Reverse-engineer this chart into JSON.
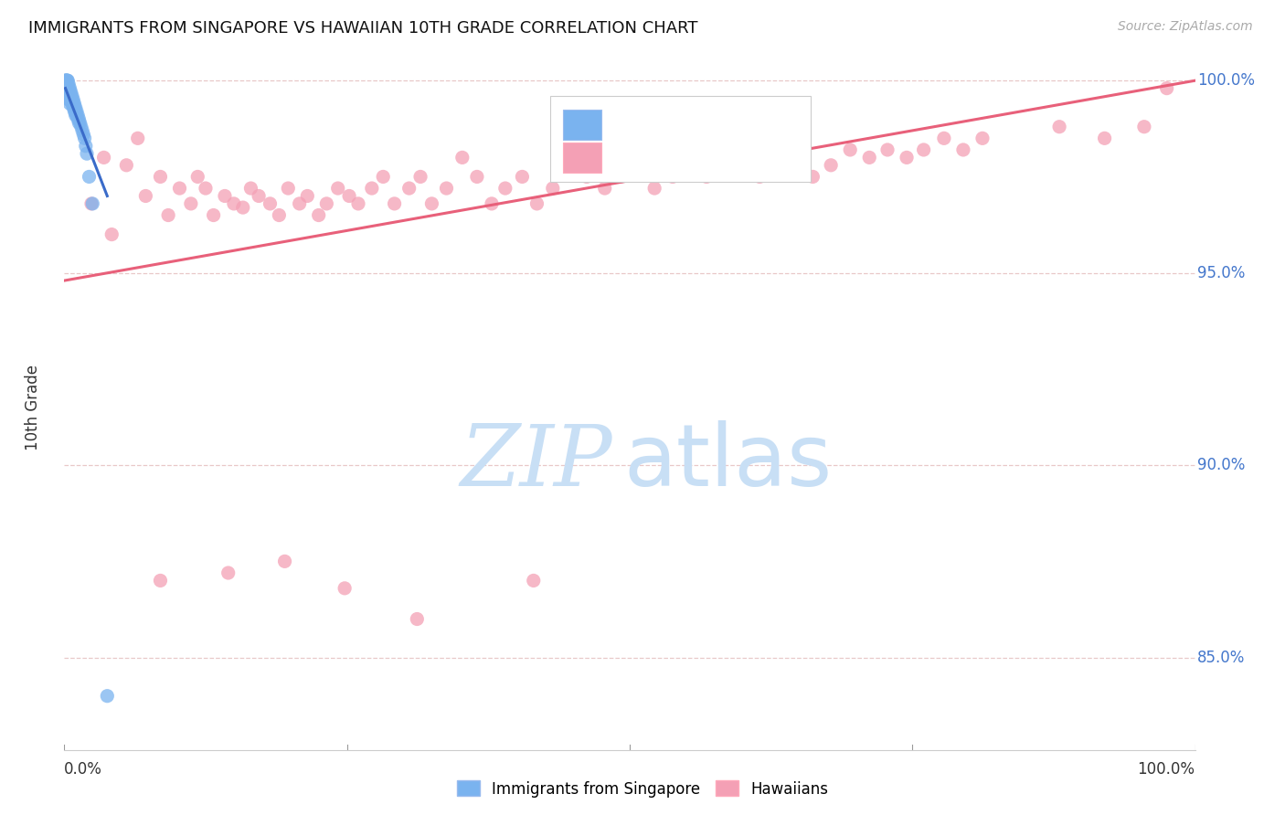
{
  "title": "IMMIGRANTS FROM SINGAPORE VS HAWAIIAN 10TH GRADE CORRELATION CHART",
  "source": "Source: ZipAtlas.com",
  "ylabel": "10th Grade",
  "blue_color": "#7ab3ef",
  "pink_color": "#f4a0b5",
  "blue_line_color": "#3a6bc9",
  "pink_line_color": "#e8607a",
  "grid_color": "#e8c8c8",
  "background_color": "#ffffff",
  "legend_text_color": "#2255aa",
  "ytick_color": "#4477cc",
  "xlim": [
    0.0,
    1.0
  ],
  "ylim": [
    0.826,
    1.004
  ],
  "yticks": [
    0.85,
    0.9,
    0.95,
    1.0
  ],
  "ytick_labels": [
    "85.0%",
    "90.0%",
    "95.0%",
    "100.0%"
  ],
  "blue_scatter_x": [
    0.001,
    0.001,
    0.002,
    0.002,
    0.002,
    0.002,
    0.002,
    0.002,
    0.003,
    0.003,
    0.003,
    0.003,
    0.003,
    0.003,
    0.003,
    0.004,
    0.004,
    0.004,
    0.004,
    0.004,
    0.005,
    0.005,
    0.005,
    0.005,
    0.005,
    0.006,
    0.006,
    0.006,
    0.007,
    0.007,
    0.007,
    0.008,
    0.008,
    0.008,
    0.009,
    0.009,
    0.009,
    0.01,
    0.01,
    0.01,
    0.011,
    0.011,
    0.012,
    0.012,
    0.013,
    0.013,
    0.014,
    0.015,
    0.016,
    0.017,
    0.018,
    0.019,
    0.02,
    0.022,
    0.025,
    0.038
  ],
  "blue_scatter_y": [
    1.0,
    1.0,
    1.0,
    1.0,
    1.0,
    0.999,
    0.999,
    0.998,
    1.0,
    1.0,
    0.999,
    0.999,
    0.998,
    0.997,
    0.996,
    0.999,
    0.998,
    0.997,
    0.996,
    0.995,
    0.998,
    0.997,
    0.996,
    0.995,
    0.994,
    0.997,
    0.996,
    0.995,
    0.996,
    0.995,
    0.994,
    0.995,
    0.994,
    0.993,
    0.994,
    0.993,
    0.992,
    0.993,
    0.992,
    0.991,
    0.992,
    0.991,
    0.991,
    0.99,
    0.99,
    0.989,
    0.989,
    0.988,
    0.987,
    0.986,
    0.985,
    0.983,
    0.981,
    0.975,
    0.968,
    0.84
  ],
  "pink_scatter_x": [
    0.024,
    0.035,
    0.042,
    0.055,
    0.065,
    0.072,
    0.085,
    0.092,
    0.102,
    0.112,
    0.118,
    0.125,
    0.132,
    0.142,
    0.15,
    0.158,
    0.165,
    0.172,
    0.182,
    0.19,
    0.198,
    0.208,
    0.215,
    0.225,
    0.232,
    0.242,
    0.252,
    0.26,
    0.272,
    0.282,
    0.292,
    0.305,
    0.315,
    0.325,
    0.338,
    0.352,
    0.365,
    0.378,
    0.39,
    0.405,
    0.418,
    0.432,
    0.448,
    0.462,
    0.478,
    0.492,
    0.508,
    0.522,
    0.538,
    0.552,
    0.568,
    0.582,
    0.598,
    0.615,
    0.632,
    0.648,
    0.662,
    0.678,
    0.695,
    0.712,
    0.728,
    0.745,
    0.76,
    0.778,
    0.795,
    0.812,
    0.88,
    0.92,
    0.955,
    0.975,
    0.085,
    0.145,
    0.195,
    0.248,
    0.312,
    0.415
  ],
  "pink_scatter_y": [
    0.968,
    0.98,
    0.96,
    0.978,
    0.985,
    0.97,
    0.975,
    0.965,
    0.972,
    0.968,
    0.975,
    0.972,
    0.965,
    0.97,
    0.968,
    0.967,
    0.972,
    0.97,
    0.968,
    0.965,
    0.972,
    0.968,
    0.97,
    0.965,
    0.968,
    0.972,
    0.97,
    0.968,
    0.972,
    0.975,
    0.968,
    0.972,
    0.975,
    0.968,
    0.972,
    0.98,
    0.975,
    0.968,
    0.972,
    0.975,
    0.968,
    0.972,
    0.98,
    0.975,
    0.972,
    0.975,
    0.978,
    0.972,
    0.975,
    0.978,
    0.975,
    0.978,
    0.98,
    0.975,
    0.978,
    0.98,
    0.975,
    0.978,
    0.982,
    0.98,
    0.982,
    0.98,
    0.982,
    0.985,
    0.982,
    0.985,
    0.988,
    0.985,
    0.988,
    0.998,
    0.87,
    0.872,
    0.875,
    0.868,
    0.86,
    0.87
  ],
  "pink_trendline_x": [
    0.0,
    1.0
  ],
  "pink_trendline_y": [
    0.948,
    1.0
  ],
  "blue_trendline_x": [
    0.001,
    0.038
  ],
  "blue_trendline_y": [
    0.998,
    0.97
  ]
}
